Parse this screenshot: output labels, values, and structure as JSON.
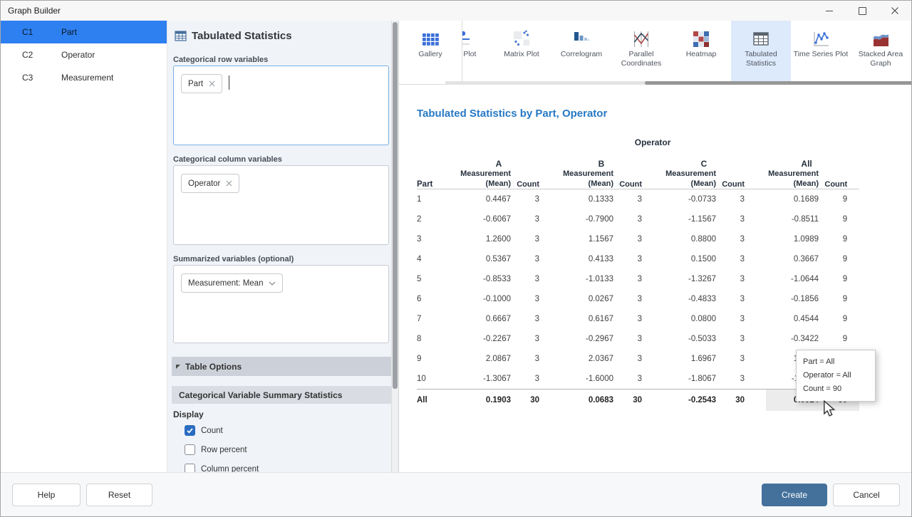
{
  "window": {
    "title": "Graph Builder"
  },
  "worksheet_columns": [
    {
      "id": "C1",
      "name": "Part",
      "selected": true
    },
    {
      "id": "C2",
      "name": "Operator",
      "selected": false
    },
    {
      "id": "C3",
      "name": "Measurement",
      "selected": false
    }
  ],
  "builder": {
    "title": "Tabulated Statistics",
    "row_variables": {
      "label": "Categorical row variables",
      "chips": [
        "Part"
      ]
    },
    "column_variables": {
      "label": "Categorical column variables",
      "chips": [
        "Operator"
      ]
    },
    "summarized_variables": {
      "label": "Summarized variables (optional)",
      "chips": [
        "Measurement: Mean"
      ]
    },
    "table_options_label": "Table Options",
    "summary_statistics": {
      "header": "Categorical Variable Summary Statistics",
      "display_label": "Display",
      "options": [
        {
          "label": "Count",
          "checked": true
        },
        {
          "label": "Row percent",
          "checked": false
        },
        {
          "label": "Column percent",
          "checked": false
        }
      ]
    }
  },
  "gallery": {
    "items": [
      {
        "label": "Gallery",
        "icon": "gallery-grid-icon",
        "pinned": true,
        "selected": false
      },
      {
        "label": "Line Plot",
        "icon": "line-plot-icon",
        "pinned": false,
        "selected": false
      },
      {
        "label": "Matrix Plot",
        "icon": "matrix-plot-icon",
        "pinned": false,
        "selected": false
      },
      {
        "label": "Correlogram",
        "icon": "correlogram-icon",
        "pinned": false,
        "selected": false
      },
      {
        "label": "Parallel Coordinates",
        "icon": "parallel-coordinates-icon",
        "pinned": false,
        "selected": false
      },
      {
        "label": "Heatmap",
        "icon": "heatmap-icon",
        "pinned": false,
        "selected": false
      },
      {
        "label": "Tabulated Statistics",
        "icon": "tabulated-statistics-icon",
        "pinned": false,
        "selected": true
      },
      {
        "label": "Time Series Plot",
        "icon": "time-series-plot-icon",
        "pinned": false,
        "selected": false
      },
      {
        "label": "Stacked Area Graph",
        "icon": "stacked-area-graph-icon",
        "pinned": false,
        "selected": false
      }
    ]
  },
  "results": {
    "title": "Tabulated Statistics by Part, Operator",
    "column_group_label": "Operator",
    "groups": [
      "A",
      "B",
      "C",
      "All"
    ],
    "row_label": "Part",
    "mean_header": "Measurement (Mean)",
    "count_header": "Count",
    "rows": [
      {
        "part": "1",
        "values": [
          "0.4467",
          "3",
          "0.1333",
          "3",
          "-0.0733",
          "3",
          "0.1689",
          "9"
        ],
        "is_total": false
      },
      {
        "part": "2",
        "values": [
          "-0.6067",
          "3",
          "-0.7900",
          "3",
          "-1.1567",
          "3",
          "-0.8511",
          "9"
        ],
        "is_total": false
      },
      {
        "part": "3",
        "values": [
          "1.2600",
          "3",
          "1.1567",
          "3",
          "0.8800",
          "3",
          "1.0989",
          "9"
        ],
        "is_total": false
      },
      {
        "part": "4",
        "values": [
          "0.5367",
          "3",
          "0.4133",
          "3",
          "0.1500",
          "3",
          "0.3667",
          "9"
        ],
        "is_total": false
      },
      {
        "part": "5",
        "values": [
          "-0.8533",
          "3",
          "-1.0133",
          "3",
          "-1.3267",
          "3",
          "-1.0644",
          "9"
        ],
        "is_total": false
      },
      {
        "part": "6",
        "values": [
          "-0.1000",
          "3",
          "0.0267",
          "3",
          "-0.4833",
          "3",
          "-0.1856",
          "9"
        ],
        "is_total": false
      },
      {
        "part": "7",
        "values": [
          "0.6667",
          "3",
          "0.6167",
          "3",
          "0.0800",
          "3",
          "0.4544",
          "9"
        ],
        "is_total": false
      },
      {
        "part": "8",
        "values": [
          "-0.2267",
          "3",
          "-0.2967",
          "3",
          "-0.5033",
          "3",
          "-0.3422",
          "9"
        ],
        "is_total": false
      },
      {
        "part": "9",
        "values": [
          "2.0867",
          "3",
          "2.0367",
          "3",
          "1.6967",
          "3",
          "1.9400",
          "9"
        ],
        "is_total": false
      },
      {
        "part": "10",
        "values": [
          "-1.3067",
          "3",
          "-1.6000",
          "3",
          "-1.8067",
          "3",
          "-1.5711",
          "9"
        ],
        "is_total": false
      },
      {
        "part": "All",
        "values": [
          "0.1903",
          "30",
          "0.0683",
          "30",
          "-0.2543",
          "30",
          "0.0014",
          "90"
        ],
        "is_total": true
      }
    ]
  },
  "tooltip": {
    "lines": [
      "Part = All",
      "Operator = All",
      "Count = 90"
    ]
  },
  "footer": {
    "help": "Help",
    "reset": "Reset",
    "create": "Create",
    "cancel": "Cancel"
  },
  "colors": {
    "selected_row_blue": "#2e80f0",
    "results_title_blue": "#2779c4",
    "create_button_blue": "#44719c",
    "checkbox_blue": "#2a6cc0",
    "selected_tab_bg": "#ddeafb",
    "gallery_icon_blue": "#3a6fd8"
  }
}
